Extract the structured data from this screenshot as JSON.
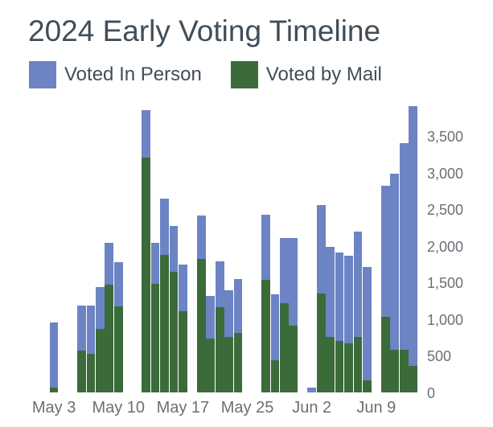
{
  "title": "2024 Early Voting Timeline",
  "legend": {
    "items": [
      {
        "label": "Voted In Person",
        "color": "#6c84c4"
      },
      {
        "label": "Voted by Mail",
        "color": "#3c6b3a"
      }
    ]
  },
  "axes": {
    "y_ticks": [
      {
        "value": 0,
        "label": "0"
      },
      {
        "value": 500,
        "label": "500"
      },
      {
        "value": 1000,
        "label": "1,000"
      },
      {
        "value": 1500,
        "label": "1,500"
      },
      {
        "value": 2000,
        "label": "2,000"
      },
      {
        "value": 2500,
        "label": "2,500"
      },
      {
        "value": 3000,
        "label": "3,000"
      },
      {
        "value": 3500,
        "label": "3,500"
      }
    ],
    "x_ticks": [
      {
        "slot": 0,
        "label": "May 3"
      },
      {
        "slot": 7,
        "label": "May 10"
      },
      {
        "slot": 14,
        "label": "May 17"
      },
      {
        "slot": 21,
        "label": "May 25"
      },
      {
        "slot": 28,
        "label": "Jun 2"
      },
      {
        "slot": 35,
        "label": "Jun 9"
      }
    ]
  },
  "chart_data": {
    "type": "bar",
    "stacked": true,
    "title": "2024 Early Voting Timeline",
    "xlabel": "",
    "ylabel": "",
    "ylim": [
      0,
      3950
    ],
    "grid": false,
    "legend_position": "top",
    "y_axis_side": "right",
    "categories": [
      "May 3",
      "May 6",
      "May 7",
      "May 8",
      "May 9",
      "May 10",
      "May 13",
      "May 14",
      "May 15",
      "May 16",
      "May 17",
      "May 20",
      "May 21",
      "May 22",
      "May 23",
      "May 24",
      "May 28",
      "May 29",
      "May 30",
      "May 31",
      "Jun 2",
      "Jun 3",
      "Jun 4",
      "Jun 5",
      "Jun 6",
      "Jun 7",
      "Jun 8",
      "Jun 10",
      "Jun 11",
      "Jun 12",
      "Jun 13"
    ],
    "series": [
      {
        "name": "Voted In Person",
        "color": "#6c84c4",
        "values": [
          890,
          610,
          655,
          575,
          575,
          610,
          650,
          560,
          760,
          635,
          635,
          590,
          580,
          630,
          640,
          735,
          890,
          900,
          890,
          1195,
          70,
          1210,
          1230,
          1210,
          1195,
          1435,
          1550,
          1795,
          2415,
          2820,
          3545
        ]
      },
      {
        "name": "Voted by Mail",
        "color": "#3c6b3a",
        "values": [
          70,
          580,
          535,
          875,
          1475,
          1180,
          3210,
          1485,
          1890,
          1650,
          1120,
          1830,
          745,
          1170,
          760,
          820,
          1540,
          450,
          1225,
          920,
          0,
          1360,
          765,
          710,
          675,
          765,
          175,
          1040,
          585,
          590,
          370
        ]
      }
    ],
    "bars": [
      {
        "date": "May 3",
        "slot": 0,
        "in_person": 890,
        "mail": 70
      },
      {
        "date": "May 6",
        "slot": 3,
        "in_person": 610,
        "mail": 580
      },
      {
        "date": "May 7",
        "slot": 4,
        "in_person": 655,
        "mail": 535
      },
      {
        "date": "May 8",
        "slot": 5,
        "in_person": 575,
        "mail": 875
      },
      {
        "date": "May 9",
        "slot": 6,
        "in_person": 575,
        "mail": 1475
      },
      {
        "date": "May 10",
        "slot": 7,
        "in_person": 610,
        "mail": 1180
      },
      {
        "date": "May 13",
        "slot": 10,
        "in_person": 650,
        "mail": 3210
      },
      {
        "date": "May 14",
        "slot": 11,
        "in_person": 560,
        "mail": 1485
      },
      {
        "date": "May 15",
        "slot": 12,
        "in_person": 760,
        "mail": 1890
      },
      {
        "date": "May 16",
        "slot": 13,
        "in_person": 635,
        "mail": 1650
      },
      {
        "date": "May 17",
        "slot": 14,
        "in_person": 635,
        "mail": 1120
      },
      {
        "date": "May 20",
        "slot": 16,
        "in_person": 590,
        "mail": 1830
      },
      {
        "date": "May 21",
        "slot": 17,
        "in_person": 580,
        "mail": 745
      },
      {
        "date": "May 22",
        "slot": 18,
        "in_person": 630,
        "mail": 1170
      },
      {
        "date": "May 23",
        "slot": 19,
        "in_person": 640,
        "mail": 760
      },
      {
        "date": "May 24",
        "slot": 20,
        "in_person": 735,
        "mail": 820
      },
      {
        "date": "May 28",
        "slot": 23,
        "in_person": 890,
        "mail": 1540
      },
      {
        "date": "May 29",
        "slot": 24,
        "in_person": 900,
        "mail": 450
      },
      {
        "date": "May 30",
        "slot": 25,
        "in_person": 890,
        "mail": 1225
      },
      {
        "date": "May 31",
        "slot": 26,
        "in_person": 1195,
        "mail": 920
      },
      {
        "date": "Jun 2",
        "slot": 28,
        "in_person": 70,
        "mail": 0
      },
      {
        "date": "Jun 3",
        "slot": 29,
        "in_person": 1210,
        "mail": 1360
      },
      {
        "date": "Jun 4",
        "slot": 30,
        "in_person": 1230,
        "mail": 765
      },
      {
        "date": "Jun 5",
        "slot": 31,
        "in_person": 1210,
        "mail": 710
      },
      {
        "date": "Jun 6",
        "slot": 32,
        "in_person": 1195,
        "mail": 675
      },
      {
        "date": "Jun 7",
        "slot": 33,
        "in_person": 1435,
        "mail": 765
      },
      {
        "date": "Jun 8",
        "slot": 34,
        "in_person": 1550,
        "mail": 175
      },
      {
        "date": "Jun 10",
        "slot": 36,
        "in_person": 1795,
        "mail": 1040
      },
      {
        "date": "Jun 11",
        "slot": 37,
        "in_person": 2415,
        "mail": 585
      },
      {
        "date": "Jun 12",
        "slot": 38,
        "in_person": 2820,
        "mail": 590
      },
      {
        "date": "Jun 13",
        "slot": 39,
        "in_person": 3545,
        "mail": 370
      }
    ]
  }
}
